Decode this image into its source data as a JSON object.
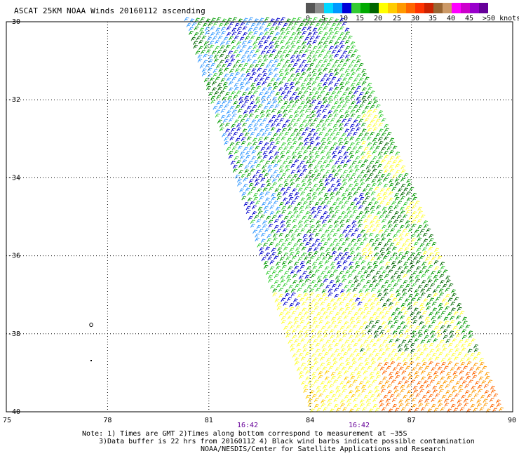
{
  "title": "ASCAT 25KM NOAA Winds 20160112 ascending",
  "colorbar": {
    "colors": [
      "#555555",
      "#8c8c8c",
      "#00d8ff",
      "#0099ff",
      "#0000d8",
      "#33cc33",
      "#00aa00",
      "#006600",
      "#ffff00",
      "#ffcc00",
      "#ff9900",
      "#ff6600",
      "#ff3300",
      "#cc2200",
      "#996633",
      "#cc9966",
      "#ff00ff",
      "#cc00cc",
      "#9900cc",
      "#660099"
    ],
    "labels": [
      "0",
      "5",
      "10",
      "15",
      "20",
      "25",
      "30",
      "35",
      "40",
      "45",
      ">50 knots"
    ]
  },
  "axes": {
    "y_ticks": [
      "-30",
      "-32",
      "-34",
      "-36",
      "-38",
      "-40"
    ],
    "x_ticks": [
      "75",
      "78",
      "81",
      "84",
      "87",
      "90"
    ],
    "time_labels": [
      "16:42",
      "16:42"
    ]
  },
  "swath_colors": {
    "blue": "#0000cc",
    "light_blue": "#3399ff",
    "green": "#33cc33",
    "dark_green": "#009900",
    "darker_green": "#006600",
    "yellow": "#ffff33",
    "light_orange": "#ffcc00",
    "orange": "#ff9900",
    "dark_orange": "#ff6600"
  },
  "notes": [
    "Note: 1) Times are GMT 2)Times along bottom correspond to measurement at ~35S",
    "3)Data buffer is 22 hrs from 20160112 4) Black wind barbs indicate possible contamination",
    "NOAA/NESDIS/Center for Satellite Applications and Research"
  ]
}
